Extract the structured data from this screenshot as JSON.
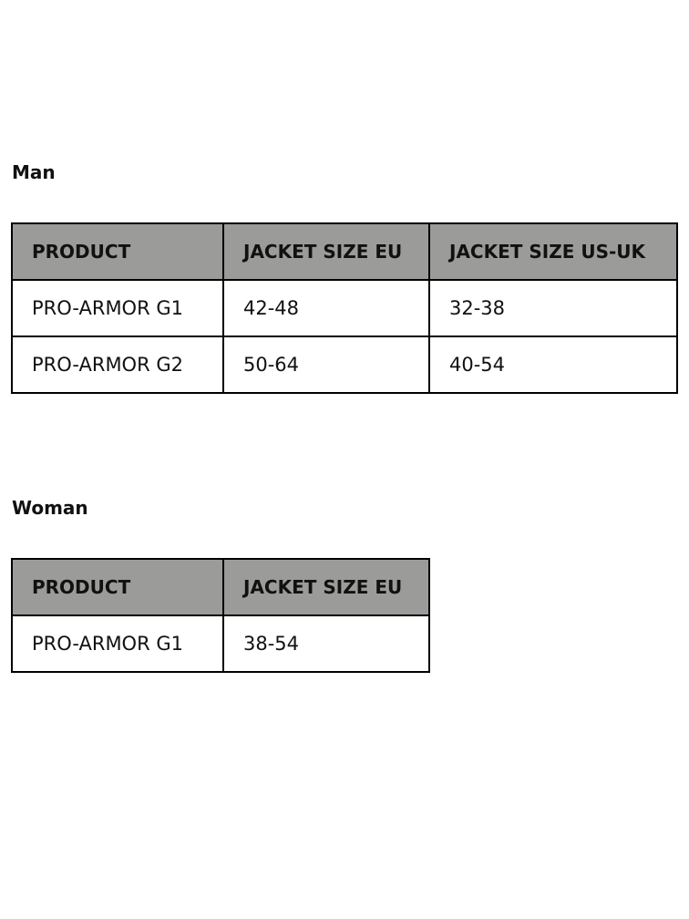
{
  "sections": [
    {
      "title": "Man",
      "headers": [
        "PRODUCT",
        "JACKET SIZE EU",
        "JACKET SIZE US-UK"
      ],
      "rows": [
        [
          "PRO-ARMOR G1",
          "42-48",
          "32-38"
        ],
        [
          "PRO-ARMOR G2",
          "50-64",
          "40-54"
        ]
      ]
    },
    {
      "title": "Woman",
      "headers": [
        "PRODUCT",
        "JACKET SIZE EU"
      ],
      "rows": [
        [
          "PRO-ARMOR G1",
          "38-54"
        ]
      ]
    }
  ]
}
